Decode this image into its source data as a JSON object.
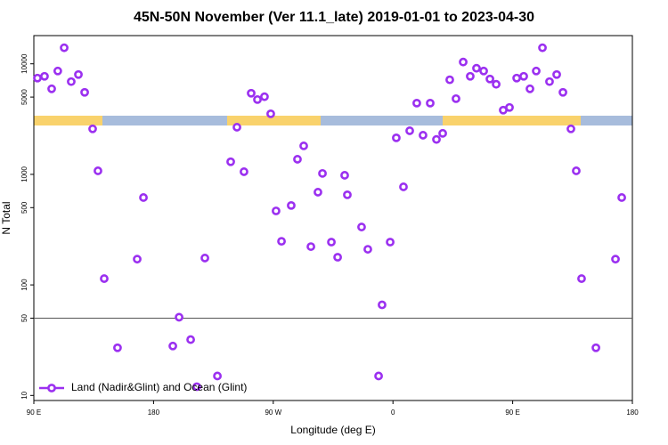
{
  "chart_data": {
    "type": "scatter",
    "title": "45N-50N November (Ver 11.1_late)   2019-01-01 to 2023-04-30",
    "x_label": "Longitude (deg E)",
    "y_label": "N Total",
    "log_y": true,
    "xlim": [
      90,
      540
    ],
    "ylim": [
      9,
      18000
    ],
    "xticks": [
      {
        "value": 90,
        "label": "90 E"
      },
      180,
      {
        "value": 270,
        "label": "90 W"
      },
      {
        "value": 360,
        "label": "0"
      },
      {
        "value": 450,
        "label": "90 E"
      },
      {
        "value": 540,
        "label": "180"
      }
    ],
    "yticks": [
      10,
      50,
      100,
      500,
      1000,
      5000,
      10000
    ],
    "hline": 50,
    "legend": "bottomleft",
    "series": [
      {
        "name": "Land (Nadir&Glint) and Ocean (Glint)",
        "color": "#9b30f0",
        "x": [
          92.7,
          98,
          103.4,
          108,
          112.8,
          118.1,
          123.5,
          128.2,
          134.2,
          138.2,
          142.9,
          152.9,
          167.7,
          172.4,
          194.5,
          199.2,
          207.9,
          212.5,
          218.6,
          228,
          238,
          242.7,
          248,
          253.4,
          258.1,
          263.4,
          268.1,
          272.1,
          276.2,
          283.5,
          288.2,
          292.9,
          298.3,
          303.6,
          307,
          313.7,
          318.4,
          323.7,
          325.7,
          336.4,
          341.1,
          349.2,
          351.8,
          357.9,
          362.5,
          367.9,
          372.6,
          377.9,
          382.6,
          388,
          392.7,
          397.4,
          402.7,
          407.4,
          412.8,
          418.1,
          422.8,
          428.2,
          432.9,
          437.6,
          442.9,
          447.6,
          453,
          458.3,
          463,
          467.7,
          472.4,
          477.7,
          483.1,
          487.8,
          493.8,
          497.8,
          501.8,
          512.6,
          527.3,
          532
        ],
        "values": [
          7430,
          7710,
          5940,
          8610,
          13970,
          6900,
          8000,
          5520,
          2580,
          1076,
          114,
          27,
          171,
          617,
          28,
          51,
          32,
          12,
          175,
          15,
          1300,
          2670,
          1057,
          5420,
          4750,
          5040,
          3530,
          467,
          248,
          523,
          1370,
          1810,
          222,
          690,
          1020,
          244,
          178,
          981,
          653,
          334,
          210,
          15,
          66,
          244,
          2140,
          771,
          2480,
          4410,
          2260,
          4410,
          2070,
          2350,
          7170,
          4840,
          10380,
          7710,
          9120,
          8610,
          7290,
          6530,
          3810,
          4030,
          7430,
          7710,
          5940,
          8610,
          13970,
          6900,
          8000,
          5520,
          2580,
          1076,
          114,
          27,
          171,
          617
        ]
      }
    ]
  }
}
